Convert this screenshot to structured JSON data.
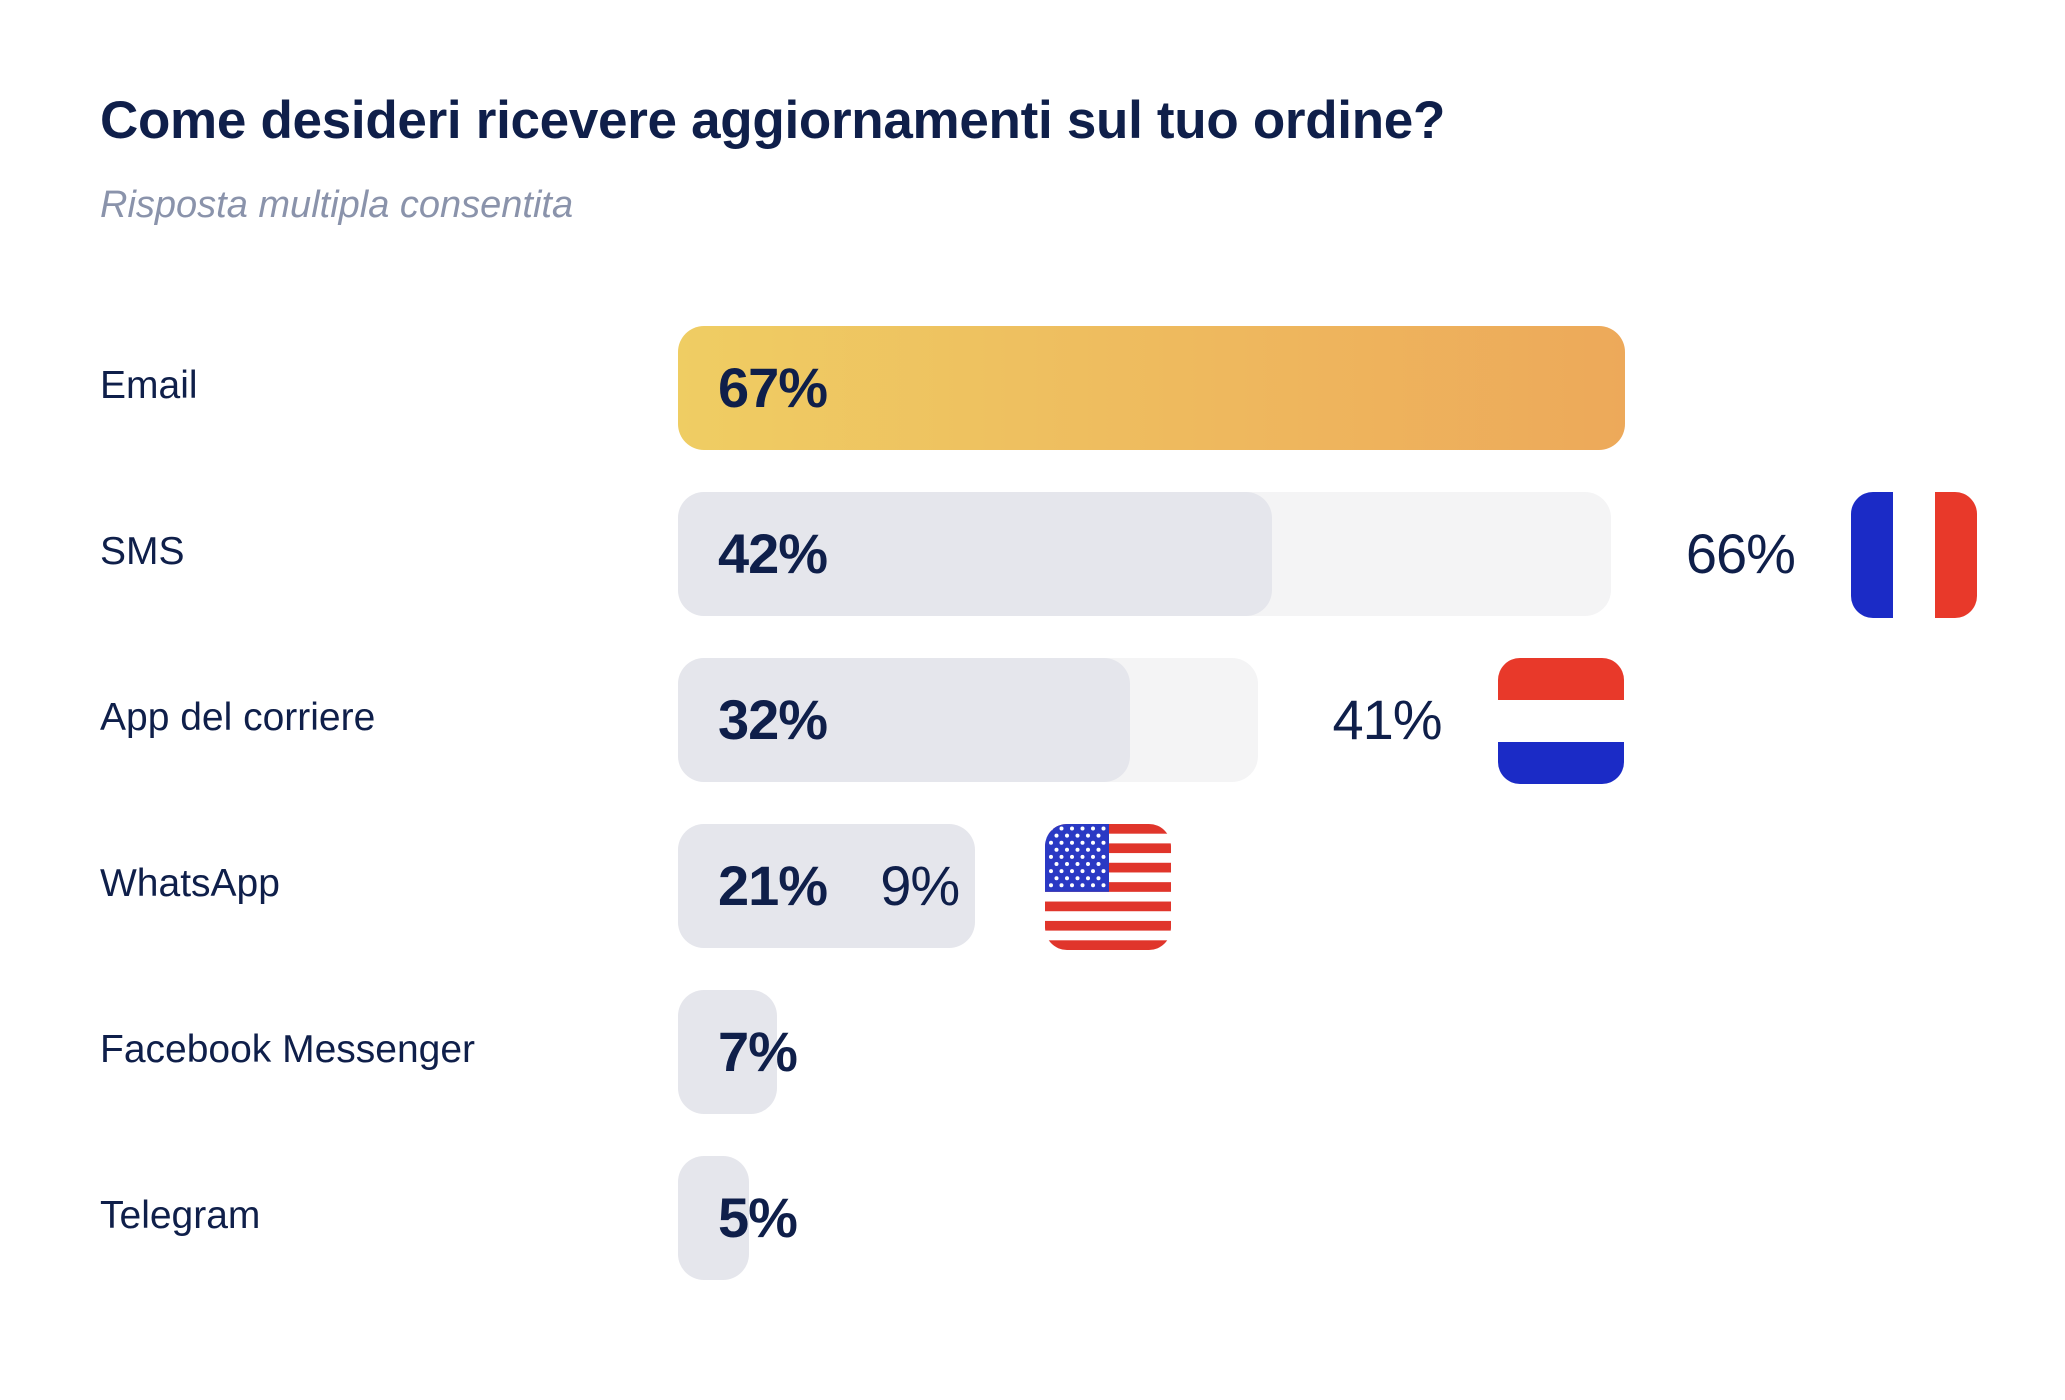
{
  "header": {
    "title": "Come desideri ricevere aggiornamenti sul tuo ordine?",
    "subtitle": "Risposta multipla consentita"
  },
  "chart_data": {
    "type": "bar",
    "orientation": "horizontal",
    "categories": [
      "Email",
      "SMS",
      "App del corriere",
      "WhatsApp",
      "Facebook Messenger",
      "Telegram"
    ],
    "values": [
      67,
      42,
      32,
      21,
      7,
      5
    ],
    "value_labels": [
      "67%",
      "42%",
      "32%",
      "21%",
      "7%",
      "5%"
    ],
    "comparisons": [
      null,
      {
        "value": 66,
        "label": "66%",
        "country": "France",
        "flag_icon": "france-flag-icon"
      },
      {
        "value": 41,
        "label": "41%",
        "country": "Netherlands",
        "flag_icon": "netherlands-flag-icon"
      },
      {
        "value": 9,
        "label": "9%",
        "country": "United States",
        "flag_icon": "usa-flag-icon"
      },
      null,
      null
    ],
    "xlim": [
      0,
      67
    ],
    "grid": false,
    "legend": "none"
  },
  "colors": {
    "title": "#0f1f4a",
    "subtitle": "#8a93ab",
    "highlight_start": "#efcd63",
    "highlight_end": "#eda95a",
    "bar": "#e5e6ec",
    "comparison_bar": "#f4f4f5",
    "france": [
      "#1b2bc6",
      "#ffffff",
      "#e8392a"
    ],
    "netherlands": [
      "#e8392a",
      "#ffffff",
      "#1b2bc6"
    ],
    "usa_red": "#e0352b",
    "usa_blue": "#2a39c4"
  }
}
